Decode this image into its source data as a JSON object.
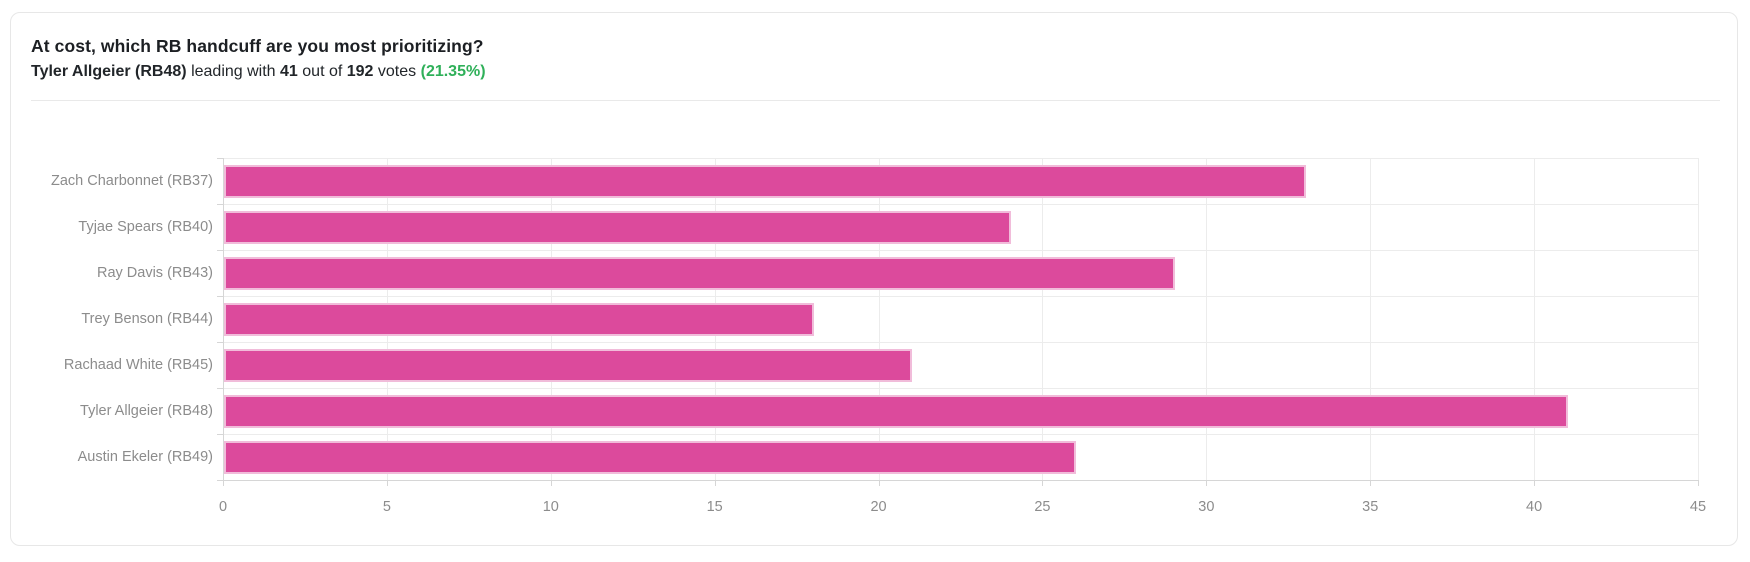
{
  "header": {
    "question": "At cost, which RB handcuff are you most prioritizing?",
    "subtitle": {
      "leader": "Tyler Allgeier (RB48)",
      "text1": "leading with",
      "votes": "41",
      "text2": "out of",
      "total": "192",
      "text3": "votes",
      "percentage": "(21.35%)"
    }
  },
  "colors": {
    "bar_fill": "#dc4a9c",
    "bar_border": "#f1bcda",
    "percentage_green": "#2fb059",
    "grid": "#ececec",
    "axis": "#d6d6d6",
    "label_gray": "#8c8c8c",
    "title_dark": "#1c1f23",
    "card_border": "#e7e7e7"
  },
  "chart_data": {
    "type": "bar",
    "orientation": "horizontal",
    "title": "At cost, which RB handcuff are you most prioritizing?",
    "categories": [
      "Zach Charbonnet (RB37)",
      "Tyjae Spears (RB40)",
      "Ray Davis (RB43)",
      "Trey Benson (RB44)",
      "Rachaad White (RB45)",
      "Tyler Allgeier (RB48)",
      "Austin Ekeler (RB49)"
    ],
    "values": [
      33,
      24,
      29,
      18,
      21,
      41,
      26
    ],
    "total_votes": 192,
    "xlabel": "",
    "ylabel": "",
    "xlim": [
      0,
      45
    ],
    "xticks": [
      0,
      5,
      10,
      15,
      20,
      25,
      30,
      35,
      40,
      45
    ],
    "grid": true,
    "legend": false,
    "bar_color": "#dc4a9c"
  }
}
